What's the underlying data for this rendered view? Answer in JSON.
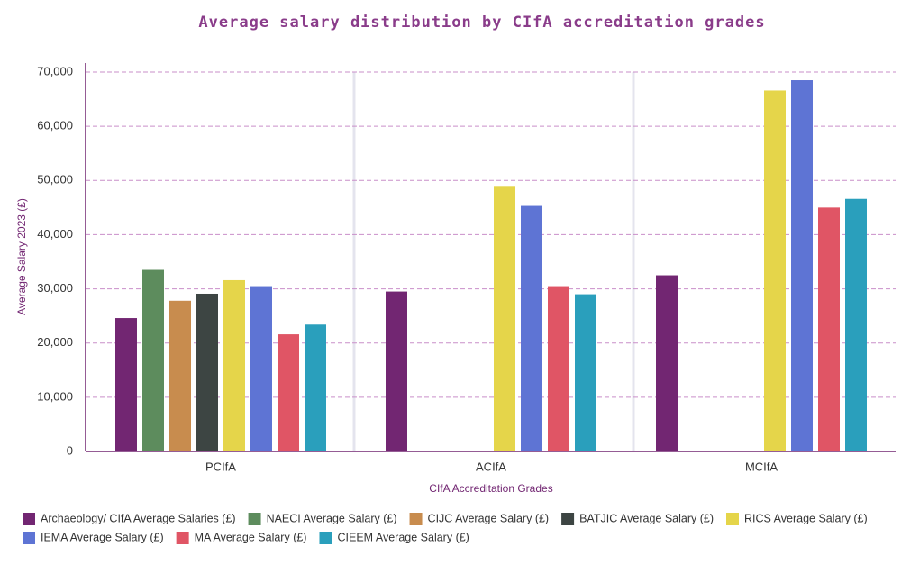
{
  "chart_data": {
    "type": "bar",
    "title": "Average salary distribution by CIfA accreditation grades",
    "x_label": "CIfA Accreditation Grades",
    "y_label": "Average Salary 2023 (£)",
    "categories": [
      "PCIfA",
      "ACIfA",
      "MCIfA"
    ],
    "ylim": [
      0,
      70000
    ],
    "yticks": [
      0,
      {
        "value": 10000,
        "label": "10,000"
      },
      {
        "value": 20000,
        "label": "20,000"
      },
      {
        "value": 30000,
        "label": "30,000"
      },
      {
        "value": 40000,
        "label": "40,000"
      },
      {
        "value": 50000,
        "label": "50,000"
      },
      {
        "value": 60000,
        "label": "60,000"
      },
      {
        "value": 70000,
        "label": "70,000"
      }
    ],
    "grid": true,
    "legend": "bottom",
    "series": [
      {
        "name": "Archaeology/ CIfA Average Salaries (£)",
        "color": "#722672",
        "values": [
          24600,
          29500,
          32500
        ]
      },
      {
        "name": "NAECI Average Salary (£)",
        "color": "#5d8c5d",
        "values": [
          33500,
          null,
          null
        ]
      },
      {
        "name": "CIJC Average Salary (£)",
        "color": "#c88c4e",
        "values": [
          27800,
          null,
          null
        ]
      },
      {
        "name": "BATJIC Average Salary (£)",
        "color": "#3d4543",
        "values": [
          29100,
          null,
          null
        ]
      },
      {
        "name": "RICS Average Salary (£)",
        "color": "#e5d54a",
        "values": [
          31600,
          49000,
          66600
        ]
      },
      {
        "name": "IEMA Average Salary (£)",
        "color": "#5e74d4",
        "values": [
          30500,
          45300,
          68500
        ]
      },
      {
        "name": "MA Average Salary (£)",
        "color": "#e05565",
        "values": [
          21600,
          30500,
          45000
        ]
      },
      {
        "name": "CIEEM Average Salary (£)",
        "color": "#2a9fbc",
        "values": [
          23400,
          29000,
          46600
        ]
      }
    ]
  }
}
